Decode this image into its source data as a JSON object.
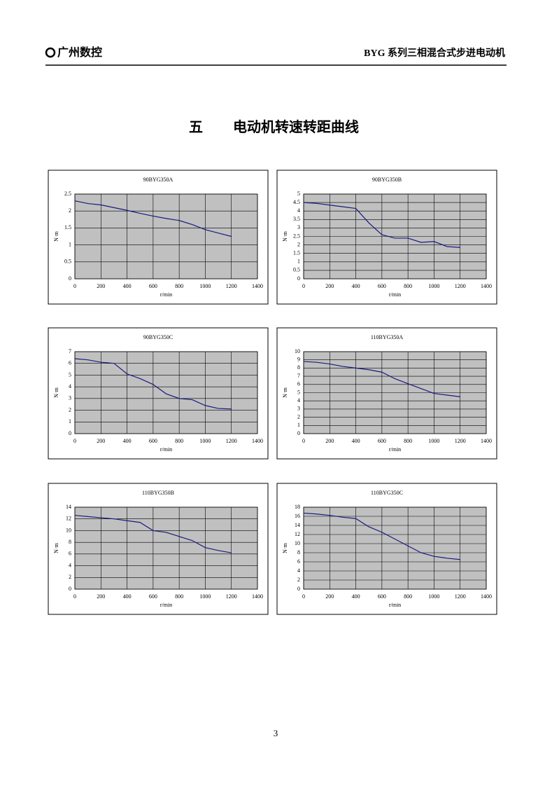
{
  "header": {
    "logo": "广州数控",
    "right": "BYG 系列三相混合式步进电动机"
  },
  "section": {
    "number": "五",
    "title": "电动机转速转距曲线"
  },
  "page_number": "3",
  "chart_data": [
    {
      "type": "line",
      "title": "90BYG350A",
      "xlabel": "r/min",
      "ylabel": "N·m",
      "color": "#1a1a80",
      "grid": true,
      "x": [
        0,
        100,
        200,
        300,
        400,
        500,
        600,
        700,
        800,
        900,
        1000,
        1100,
        1200
      ],
      "values": [
        2.3,
        2.22,
        2.18,
        2.1,
        2.02,
        1.93,
        1.85,
        1.78,
        1.72,
        1.6,
        1.45,
        1.35,
        1.25
      ],
      "xlim": [
        0,
        1400
      ],
      "xticks": [
        0,
        200,
        400,
        600,
        800,
        1000,
        1200,
        1400
      ],
      "ylim": [
        0,
        2.5
      ],
      "yticks": [
        0,
        0.5,
        1,
        1.5,
        2,
        2.5
      ]
    },
    {
      "type": "line",
      "title": "90BYG350B",
      "xlabel": "r/min",
      "ylabel": "N·m",
      "color": "#1a1a80",
      "grid": true,
      "x": [
        0,
        100,
        200,
        300,
        400,
        500,
        600,
        700,
        800,
        900,
        1000,
        1100,
        1200
      ],
      "values": [
        4.5,
        4.45,
        4.35,
        4.25,
        4.15,
        3.3,
        2.6,
        2.4,
        2.4,
        2.15,
        2.2,
        1.9,
        1.85
      ],
      "xlim": [
        0,
        1400
      ],
      "xticks": [
        0,
        200,
        400,
        600,
        800,
        1000,
        1200,
        1400
      ],
      "ylim": [
        0,
        5
      ],
      "yticks": [
        0,
        0.5,
        1,
        1.5,
        2,
        2.5,
        3,
        3.5,
        4,
        4.5,
        5
      ]
    },
    {
      "type": "line",
      "title": "90BYG350C",
      "xlabel": "r/min",
      "ylabel": "N·m",
      "color": "#1a1a80",
      "grid": true,
      "x": [
        0,
        100,
        200,
        300,
        400,
        500,
        600,
        700,
        800,
        900,
        1000,
        1100,
        1200
      ],
      "values": [
        6.4,
        6.3,
        6.1,
        6.0,
        5.1,
        4.7,
        4.2,
        3.4,
        3.0,
        2.9,
        2.4,
        2.15,
        2.1
      ],
      "xlim": [
        0,
        1400
      ],
      "xticks": [
        0,
        200,
        400,
        600,
        800,
        1000,
        1200,
        1400
      ],
      "ylim": [
        0,
        7
      ],
      "yticks": [
        0,
        1,
        2,
        3,
        4,
        5,
        6,
        7
      ]
    },
    {
      "type": "line",
      "title": "110BYG350A",
      "xlabel": "r/min",
      "ylabel": "N·m",
      "color": "#1a1a80",
      "grid": true,
      "x": [
        0,
        100,
        200,
        300,
        400,
        500,
        600,
        700,
        800,
        900,
        1000,
        1100,
        1200
      ],
      "values": [
        8.8,
        8.7,
        8.5,
        8.2,
        8.0,
        7.8,
        7.5,
        6.7,
        6.1,
        5.5,
        4.9,
        4.7,
        4.5
      ],
      "xlim": [
        0,
        1400
      ],
      "xticks": [
        0,
        200,
        400,
        600,
        800,
        1000,
        1200,
        1400
      ],
      "ylim": [
        0,
        10
      ],
      "yticks": [
        0,
        1,
        2,
        3,
        4,
        5,
        6,
        7,
        8,
        9,
        10
      ]
    },
    {
      "type": "line",
      "title": "110BYG350B",
      "xlabel": "r/min",
      "ylabel": "N·m",
      "color": "#1a1a80",
      "grid": true,
      "x": [
        0,
        100,
        200,
        300,
        400,
        500,
        600,
        700,
        800,
        900,
        1000,
        1100,
        1200
      ],
      "values": [
        12.6,
        12.4,
        12.2,
        12.0,
        11.7,
        11.4,
        10.0,
        9.7,
        9.0,
        8.3,
        7.1,
        6.6,
        6.2
      ],
      "xlim": [
        0,
        1400
      ],
      "xticks": [
        0,
        200,
        400,
        600,
        800,
        1000,
        1200,
        1400
      ],
      "ylim": [
        0,
        14
      ],
      "yticks": [
        0,
        2,
        4,
        6,
        8,
        10,
        12,
        14
      ]
    },
    {
      "type": "line",
      "title": "110BYG350C",
      "xlabel": "r/min",
      "ylabel": "N·m",
      "color": "#1a1a80",
      "grid": true,
      "x": [
        0,
        100,
        200,
        300,
        400,
        500,
        600,
        700,
        800,
        900,
        1000,
        1100,
        1200
      ],
      "values": [
        16.7,
        16.5,
        16.2,
        15.8,
        15.5,
        13.7,
        12.5,
        11.0,
        9.5,
        8.0,
        7.2,
        6.8,
        6.5
      ],
      "xlim": [
        0,
        1400
      ],
      "xticks": [
        0,
        200,
        400,
        600,
        800,
        1000,
        1200,
        1400
      ],
      "ylim": [
        0,
        18
      ],
      "yticks": [
        0,
        2,
        4,
        6,
        8,
        10,
        12,
        14,
        16,
        18
      ]
    }
  ]
}
